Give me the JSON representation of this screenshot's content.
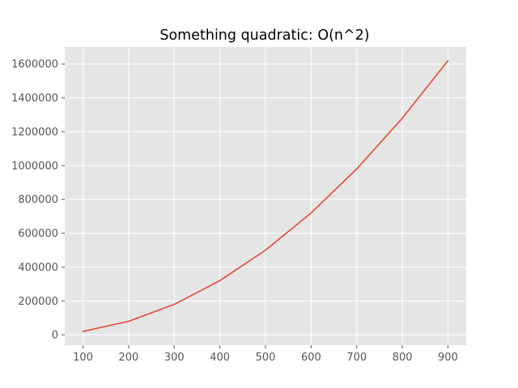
{
  "chart_data": {
    "type": "line",
    "title": "Something quadratic: O(n^2)",
    "xlabel": "",
    "ylabel": "",
    "x": [
      100,
      200,
      300,
      400,
      500,
      600,
      700,
      800,
      900
    ],
    "series": [
      {
        "values": [
          20000,
          80000,
          180000,
          320000,
          500000,
          720000,
          980000,
          1280000,
          1620000
        ],
        "color": "#E24A33"
      }
    ],
    "xlim": [
      60,
      940
    ],
    "ylim": [
      -61000,
      1701000
    ],
    "x_ticks": [
      100,
      200,
      300,
      400,
      500,
      600,
      700,
      800,
      900
    ],
    "x_tick_labels": [
      "100",
      "200",
      "300",
      "400",
      "500",
      "600",
      "700",
      "800",
      "900"
    ],
    "y_ticks": [
      0,
      200000,
      400000,
      600000,
      800000,
      1000000,
      1200000,
      1400000,
      1600000
    ],
    "y_tick_labels": [
      "0",
      "200000",
      "400000",
      "600000",
      "800000",
      "1000000",
      "1200000",
      "1400000",
      "1600000"
    ],
    "grid": true,
    "style": "ggplot",
    "plot_background": "#E5E5E5",
    "grid_color": "#FFFFFF",
    "tick_label_color": "#555555"
  }
}
